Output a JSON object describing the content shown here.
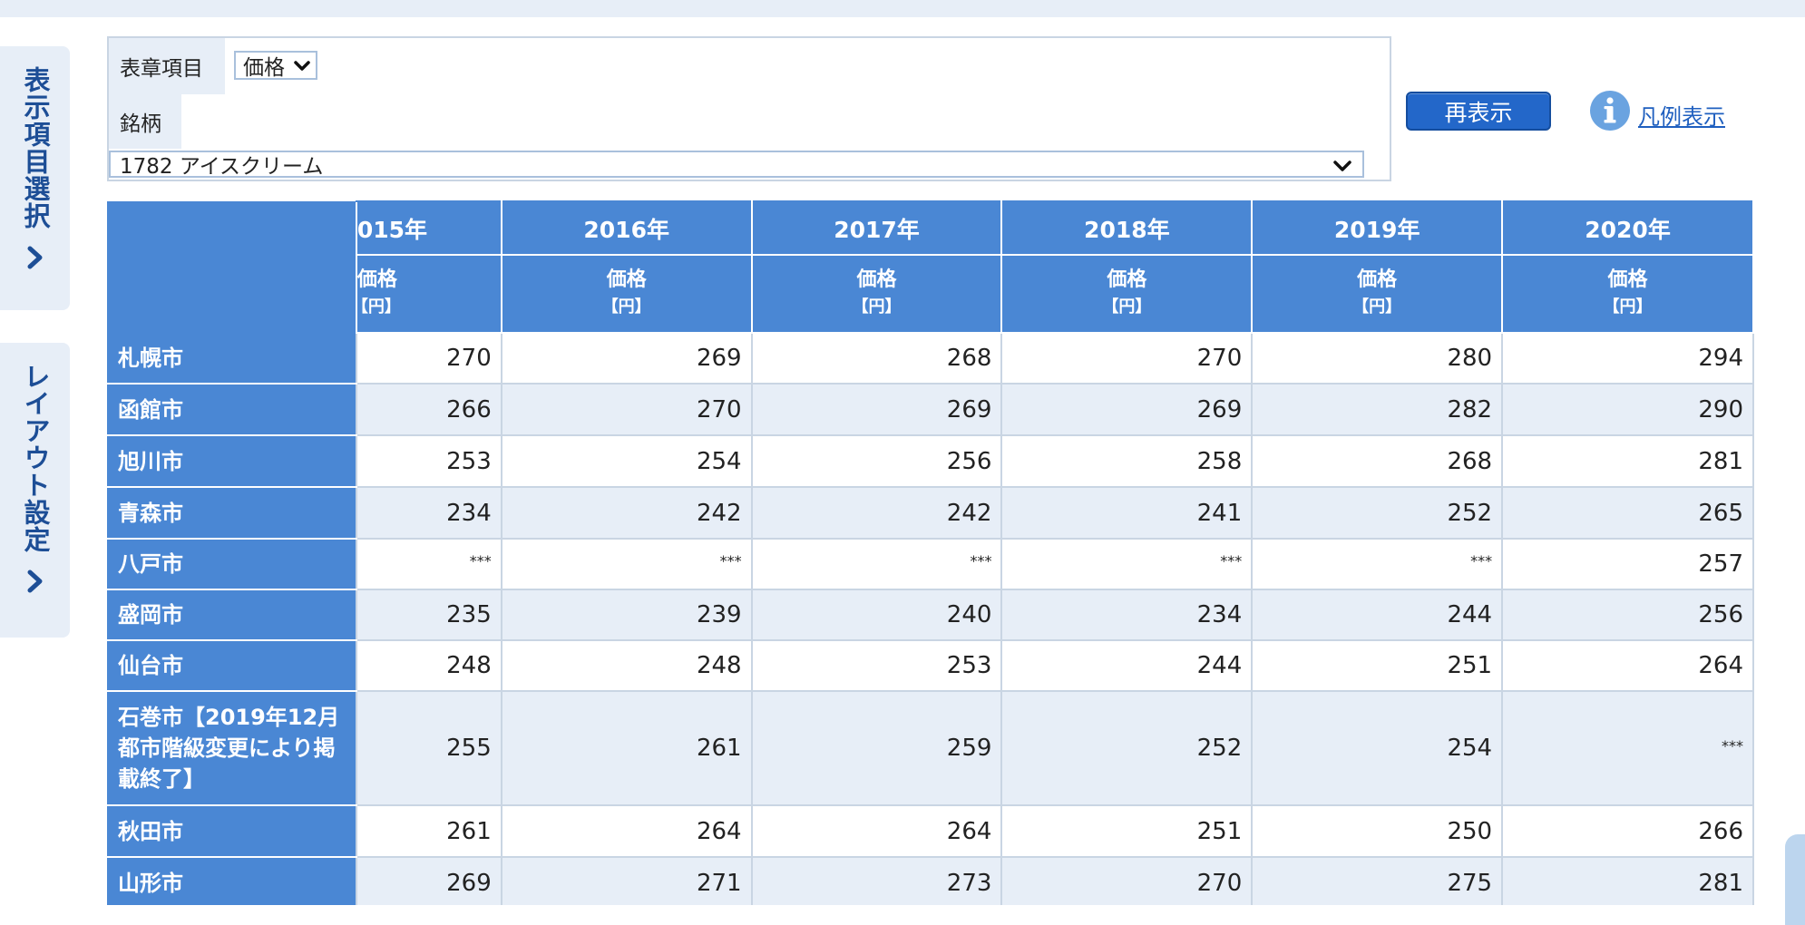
{
  "side_tabs": {
    "display_items": "表示項目選択",
    "layout": "レイアウト設定"
  },
  "controls": {
    "item_label": "表章項目",
    "item_value": "価格",
    "brand_label": "銘柄",
    "brand_value": "1782 アイスクリーム",
    "redisplay_label": "再表示",
    "legend_label": "凡例表示"
  },
  "table": {
    "years": [
      "015年",
      "2016年",
      "2017年",
      "2018年",
      "2019年",
      "2020年"
    ],
    "sub_label": "価格",
    "unit": "【円】",
    "rows": [
      {
        "city": "札幌市",
        "values": [
          "270",
          "269",
          "268",
          "270",
          "280",
          "294"
        ]
      },
      {
        "city": "函館市",
        "values": [
          "266",
          "270",
          "269",
          "269",
          "282",
          "290"
        ]
      },
      {
        "city": "旭川市",
        "values": [
          "253",
          "254",
          "256",
          "258",
          "268",
          "281"
        ]
      },
      {
        "city": "青森市",
        "values": [
          "234",
          "242",
          "242",
          "241",
          "252",
          "265"
        ]
      },
      {
        "city": "八戸市",
        "values": [
          "***",
          "***",
          "***",
          "***",
          "***",
          "257"
        ]
      },
      {
        "city": "盛岡市",
        "values": [
          "235",
          "239",
          "240",
          "234",
          "244",
          "256"
        ]
      },
      {
        "city": "仙台市",
        "values": [
          "248",
          "248",
          "253",
          "244",
          "251",
          "264"
        ]
      },
      {
        "city": "石巻市【2019年12月都市階級変更により掲載終了】",
        "values": [
          "255",
          "261",
          "259",
          "252",
          "254",
          "***"
        ]
      },
      {
        "city": "秋田市",
        "values": [
          "261",
          "264",
          "264",
          "251",
          "250",
          "266"
        ]
      },
      {
        "city": "山形市",
        "values": [
          "269",
          "271",
          "273",
          "270",
          "275",
          "281"
        ]
      }
    ]
  }
}
